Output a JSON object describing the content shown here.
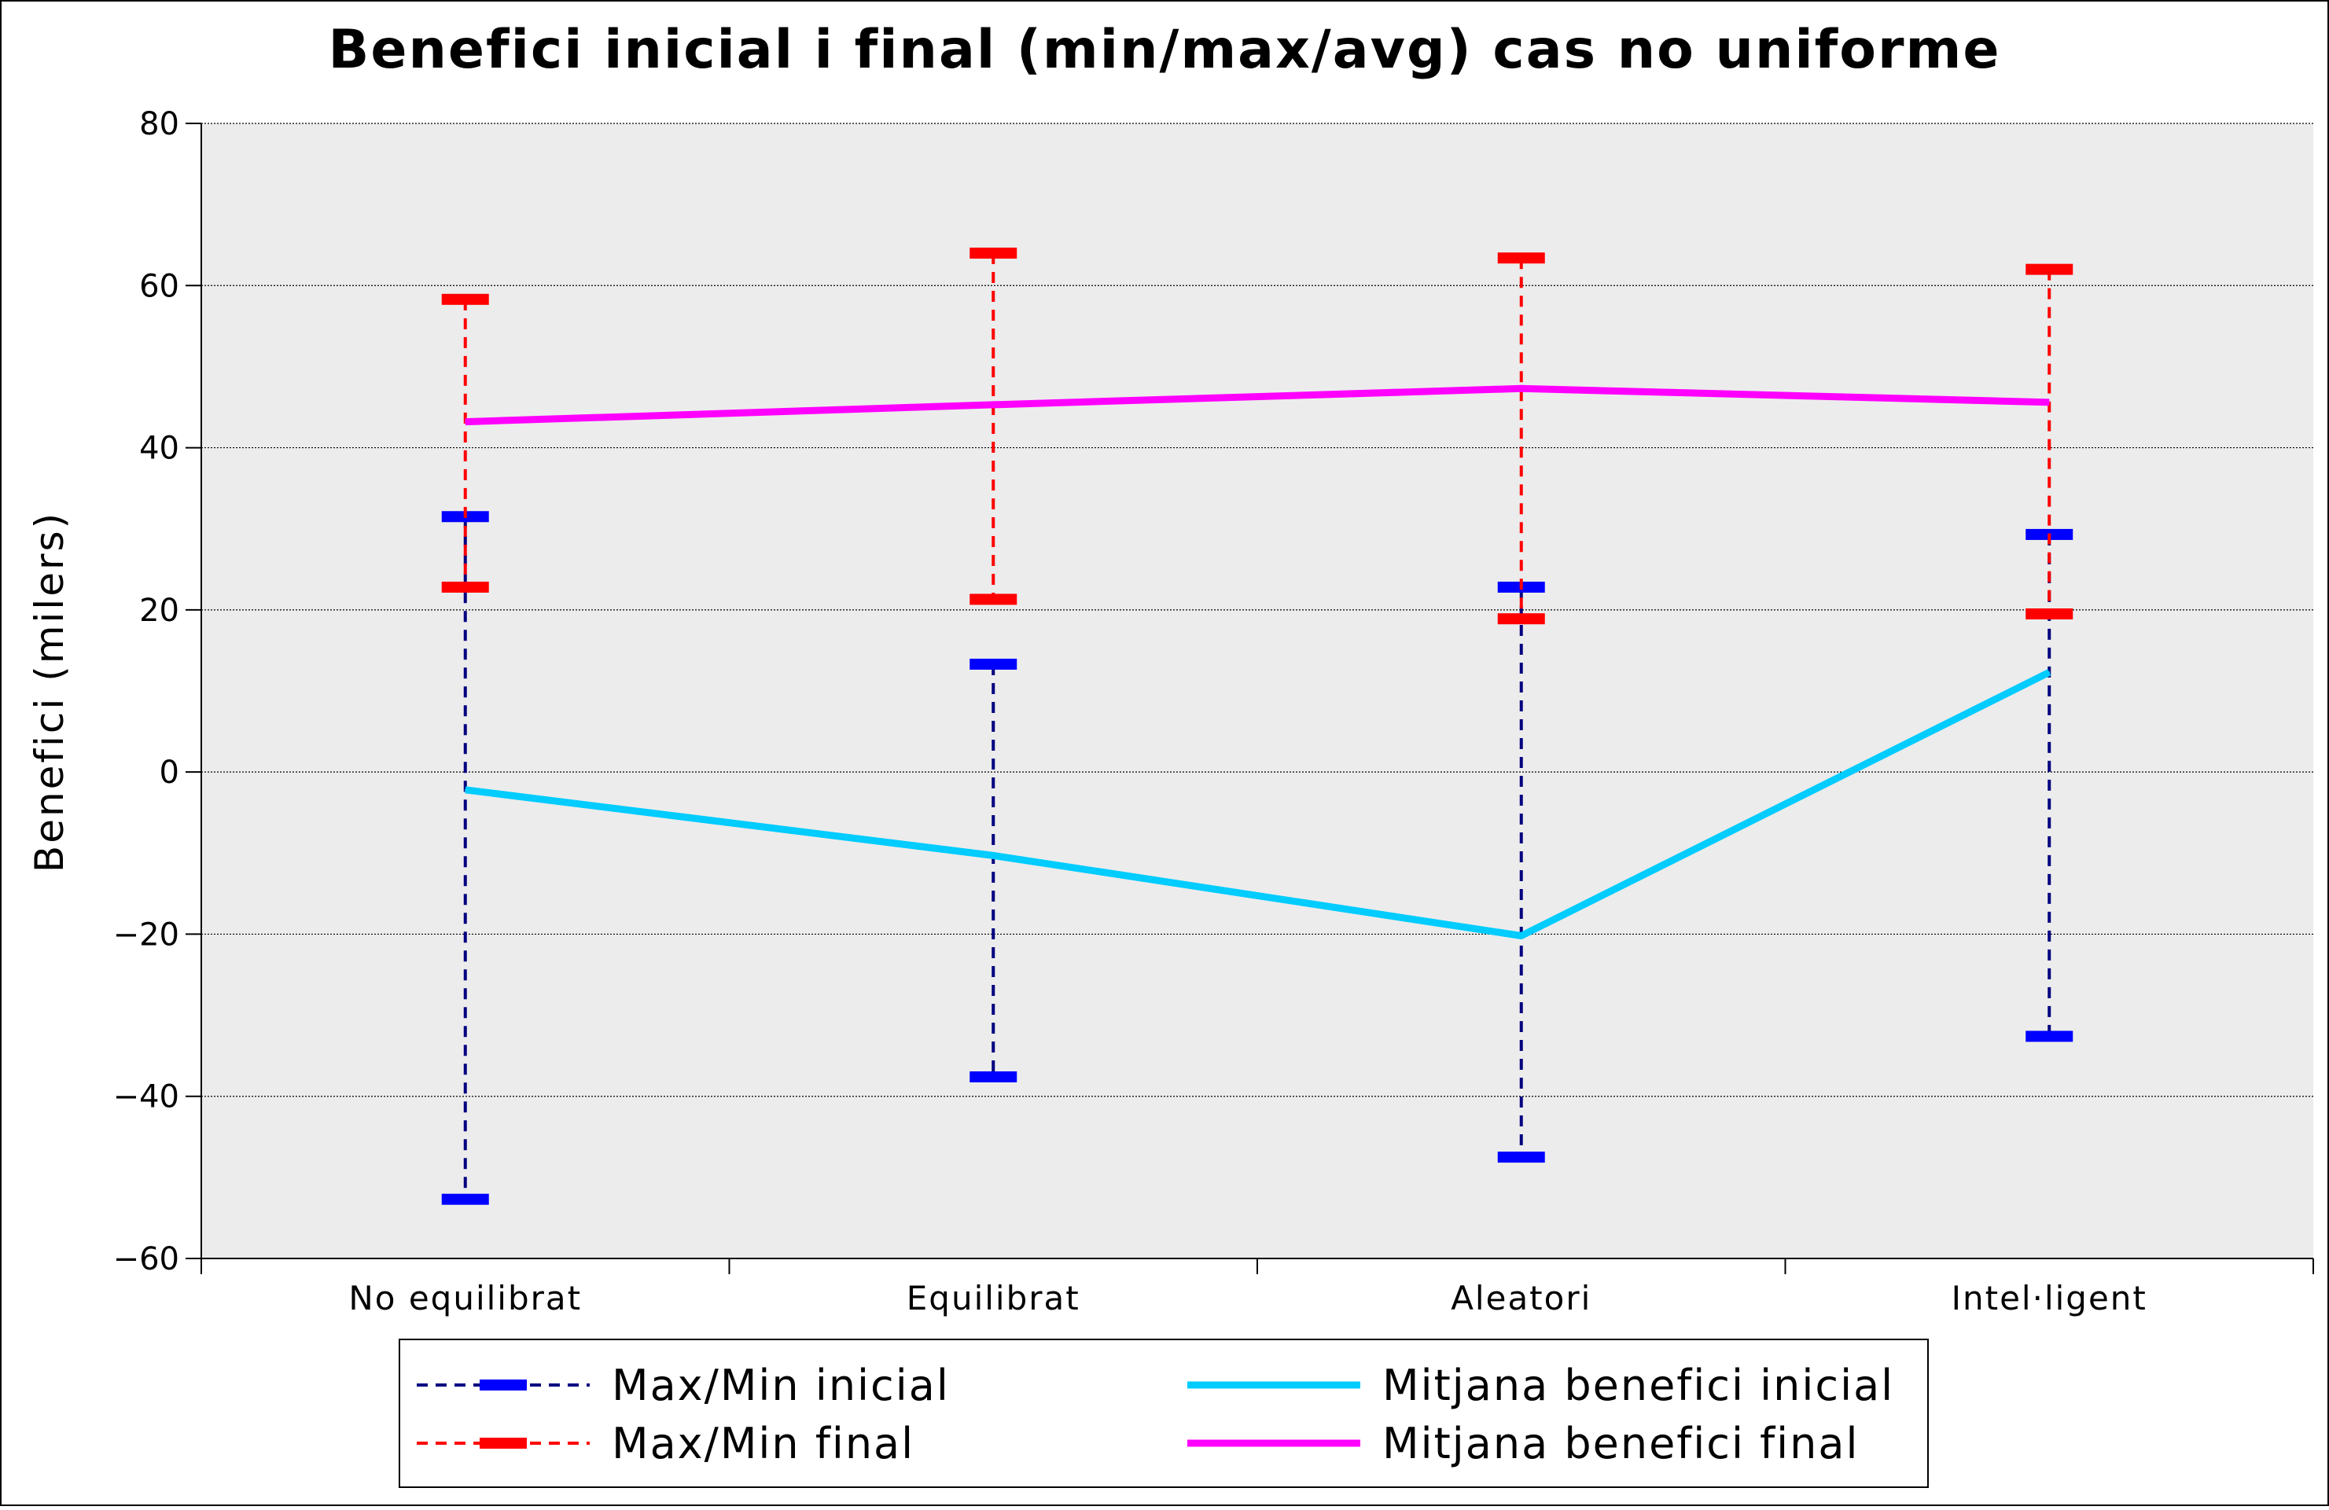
{
  "chart_data": {
    "type": "line",
    "title": "Benefici inicial i final (min/max/avg) cas no uniforme",
    "ylabel": "Benefici (milers)",
    "xlabel": "",
    "categories": [
      "No equilibrat",
      "Equilibrat",
      "Aleatori",
      "Intel·ligent"
    ],
    "ylim": [
      -60,
      80
    ],
    "yticks": [
      80,
      60,
      40,
      20,
      0,
      -20,
      -40,
      -60
    ],
    "ytick_labels": [
      "80",
      "60",
      "40",
      "20",
      "0",
      "−20",
      "−40",
      "−60"
    ],
    "grid": true,
    "legend_position": "bottom",
    "series": [
      {
        "name": "Max/Min inicial",
        "kind": "errorbar",
        "color": "#000080",
        "cap_color": "#0000ff",
        "max": [
          31.5,
          13.3,
          22.8,
          29.3
        ],
        "min": [
          -52.7,
          -37.6,
          -47.5,
          -32.6
        ]
      },
      {
        "name": "Max/Min final",
        "kind": "errorbar",
        "color": "#ff0000",
        "cap_color": "#ff0000",
        "max": [
          58.3,
          64.0,
          63.4,
          62.0
        ],
        "min": [
          22.8,
          21.3,
          18.9,
          19.5
        ]
      },
      {
        "name": "Mitjana benefici inicial",
        "kind": "line",
        "color": "#00ccff",
        "values": [
          -2.2,
          -10.3,
          -20.2,
          12.3
        ]
      },
      {
        "name": "Mitjana benefici final",
        "kind": "line",
        "color": "#ff00ff",
        "values": [
          43.2,
          45.3,
          47.3,
          45.6
        ]
      }
    ]
  }
}
